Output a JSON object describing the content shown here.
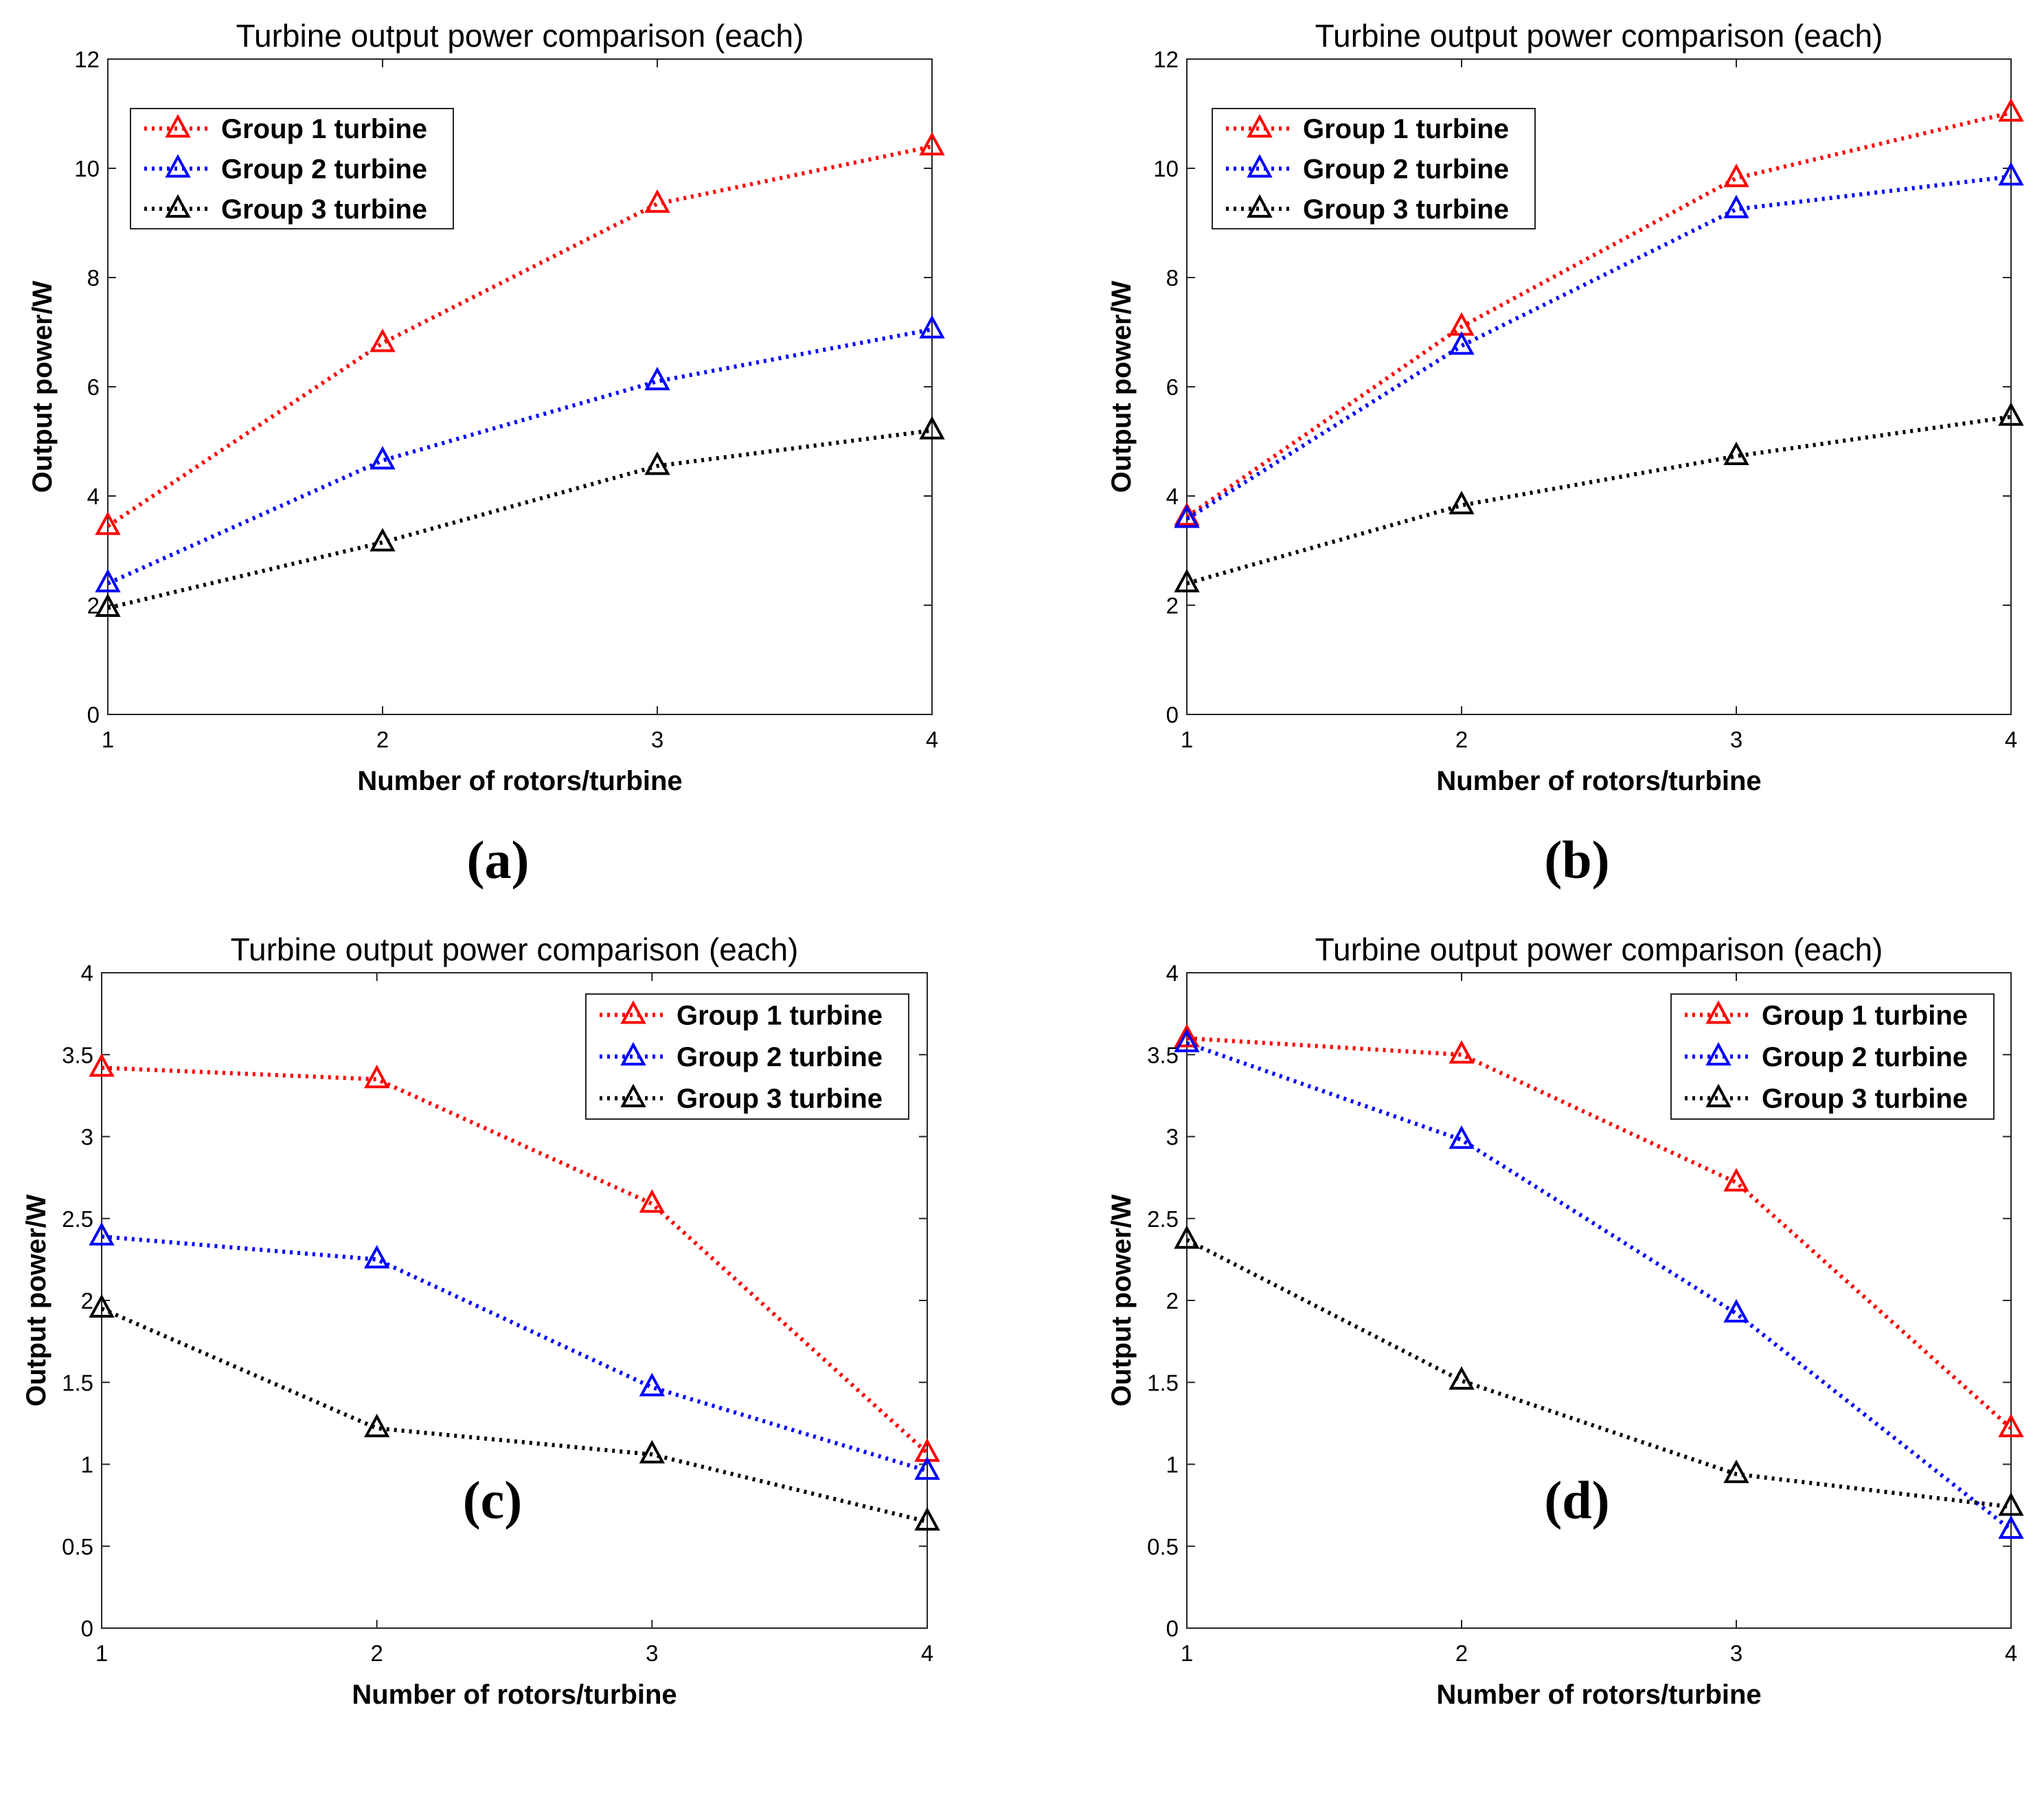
{
  "colors": {
    "series": [
      "#ff0000",
      "#0000ff",
      "#000000"
    ]
  },
  "chart_data": [
    {
      "type": "line",
      "panel_label": "(a)",
      "title": "Turbine output power comparison (each)",
      "xlabel": "Number of rotors/turbine",
      "ylabel": "Output power/W",
      "x": [
        1,
        2,
        3,
        4
      ],
      "x_tick_labels": [
        "1",
        "2",
        "3",
        "4"
      ],
      "xlim": [
        1,
        4
      ],
      "ylim": [
        0,
        12
      ],
      "y_ticks": [
        0,
        2,
        4,
        6,
        8,
        10,
        12
      ],
      "y_tick_labels": [
        "0",
        "2",
        "4",
        "6",
        "8",
        "10",
        "12"
      ],
      "legend_position": "top-left",
      "series": [
        {
          "name": "Group 1 turbine",
          "values": [
            3.45,
            6.8,
            9.35,
            10.4
          ]
        },
        {
          "name": "Group 2 turbine",
          "values": [
            2.4,
            4.65,
            6.1,
            7.05
          ]
        },
        {
          "name": "Group 3 turbine",
          "values": [
            1.95,
            3.15,
            4.55,
            5.2
          ]
        }
      ]
    },
    {
      "type": "line",
      "panel_label": "(b)",
      "title": "Turbine output power comparison (each)",
      "xlabel": "Number of rotors/turbine",
      "ylabel": "Output power/W",
      "x": [
        1,
        2,
        3,
        4
      ],
      "x_tick_labels": [
        "1",
        "2",
        "3",
        "4"
      ],
      "xlim": [
        1,
        4
      ],
      "ylim": [
        0,
        12
      ],
      "y_ticks": [
        0,
        2,
        4,
        6,
        8,
        10,
        12
      ],
      "y_tick_labels": [
        "0",
        "2",
        "4",
        "6",
        "8",
        "10",
        "12"
      ],
      "legend_position": "top-left",
      "series": [
        {
          "name": "Group 1 turbine",
          "values": [
            3.62,
            7.1,
            9.82,
            11.02
          ]
        },
        {
          "name": "Group 2 turbine",
          "values": [
            3.58,
            6.75,
            9.25,
            9.85
          ]
        },
        {
          "name": "Group 3 turbine",
          "values": [
            2.4,
            3.83,
            4.73,
            5.45
          ]
        }
      ]
    },
    {
      "type": "line",
      "panel_label": "(c)",
      "title": "Turbine output power comparison (each)",
      "xlabel": "Number of rotors/turbine",
      "ylabel": "Output power/W",
      "x": [
        1,
        2,
        3,
        4
      ],
      "x_tick_labels": [
        "1",
        "2",
        "3",
        "4"
      ],
      "xlim": [
        1,
        4
      ],
      "ylim": [
        0,
        4
      ],
      "y_ticks": [
        0,
        0.5,
        1,
        1.5,
        2,
        2.5,
        3,
        3.5,
        4
      ],
      "y_tick_labels": [
        "0",
        "0.5",
        "1",
        "1.5",
        "2",
        "2.5",
        "3",
        "3.5",
        "4"
      ],
      "legend_position": "top-right",
      "series": [
        {
          "name": "Group 1 turbine",
          "values": [
            3.42,
            3.35,
            2.59,
            1.07
          ]
        },
        {
          "name": "Group 2 turbine",
          "values": [
            2.39,
            2.25,
            1.47,
            0.96
          ]
        },
        {
          "name": "Group 3 turbine",
          "values": [
            1.95,
            1.22,
            1.06,
            0.65
          ]
        }
      ]
    },
    {
      "type": "line",
      "panel_label": "(d)",
      "title": "Turbine output power comparison (each)",
      "xlabel": "Number of rotors/turbine",
      "ylabel": "Output power/W",
      "x": [
        1,
        2,
        3,
        4
      ],
      "x_tick_labels": [
        "1",
        "2",
        "3",
        "4"
      ],
      "xlim": [
        1,
        4
      ],
      "ylim": [
        0,
        4
      ],
      "y_ticks": [
        0,
        0.5,
        1,
        1.5,
        2,
        2.5,
        3,
        3.5,
        4
      ],
      "y_tick_labels": [
        "0",
        "0.5",
        "1",
        "1.5",
        "2",
        "2.5",
        "3",
        "3.5",
        "4"
      ],
      "legend_position": "top-right",
      "series": [
        {
          "name": "Group 1 turbine",
          "values": [
            3.6,
            3.5,
            2.72,
            1.22
          ]
        },
        {
          "name": "Group 2 turbine",
          "values": [
            3.57,
            2.98,
            1.92,
            0.6
          ]
        },
        {
          "name": "Group 3 turbine",
          "values": [
            2.37,
            1.51,
            0.94,
            0.74
          ]
        }
      ]
    }
  ]
}
